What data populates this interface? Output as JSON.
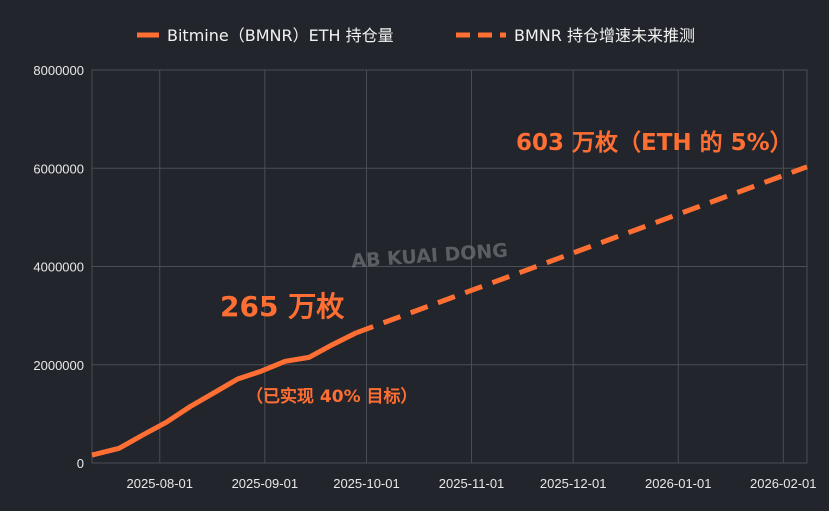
{
  "colors": {
    "background": "#22252b",
    "grid": "#4a4e55",
    "series": "#ff6f33",
    "text": "#e8e8e8"
  },
  "watermark": "AB KUAI DONG",
  "chart_data": {
    "type": "line",
    "grid": true,
    "legend_position": "top-center",
    "x_axis": {
      "type": "date",
      "range": [
        "2025-07-12",
        "2026-02-08"
      ],
      "tick_labels": [
        "2025-08-01",
        "2025-09-01",
        "2025-10-01",
        "2025-11-01",
        "2025-12-01",
        "2026-01-01",
        "2026-02-01"
      ]
    },
    "y_axis": {
      "range": [
        0,
        8000000
      ],
      "tick_labels": [
        "0",
        "2000000",
        "4000000",
        "6000000",
        "8000000"
      ]
    },
    "series": [
      {
        "name": "Bitmine（BMNR）ETH 持仓量",
        "style": "solid",
        "points": [
          {
            "x": "2025-07-12",
            "y": 160000
          },
          {
            "x": "2025-07-20",
            "y": 300000
          },
          {
            "x": "2025-07-27",
            "y": 570000
          },
          {
            "x": "2025-08-03",
            "y": 830000
          },
          {
            "x": "2025-08-10",
            "y": 1150000
          },
          {
            "x": "2025-08-17",
            "y": 1430000
          },
          {
            "x": "2025-08-24",
            "y": 1710000
          },
          {
            "x": "2025-08-31",
            "y": 1870000
          },
          {
            "x": "2025-09-07",
            "y": 2070000
          },
          {
            "x": "2025-09-14",
            "y": 2150000
          },
          {
            "x": "2025-09-21",
            "y": 2410000
          },
          {
            "x": "2025-09-28",
            "y": 2650000
          }
        ]
      },
      {
        "name": "BMNR 持仓增速未来推测",
        "style": "dashed",
        "points": [
          {
            "x": "2025-09-28",
            "y": 2650000
          },
          {
            "x": "2026-02-08",
            "y": 6030000
          }
        ]
      }
    ],
    "annotations": [
      {
        "text": "265 万枚",
        "x": "2025-09-28",
        "y": 2650000
      },
      {
        "text": "（已实现 40% 目标）",
        "x": "2025-09-28",
        "y": 2650000
      },
      {
        "text": "603 万枚（ETH 的 5%）",
        "x": "2026-02-08",
        "y": 6030000
      }
    ]
  }
}
